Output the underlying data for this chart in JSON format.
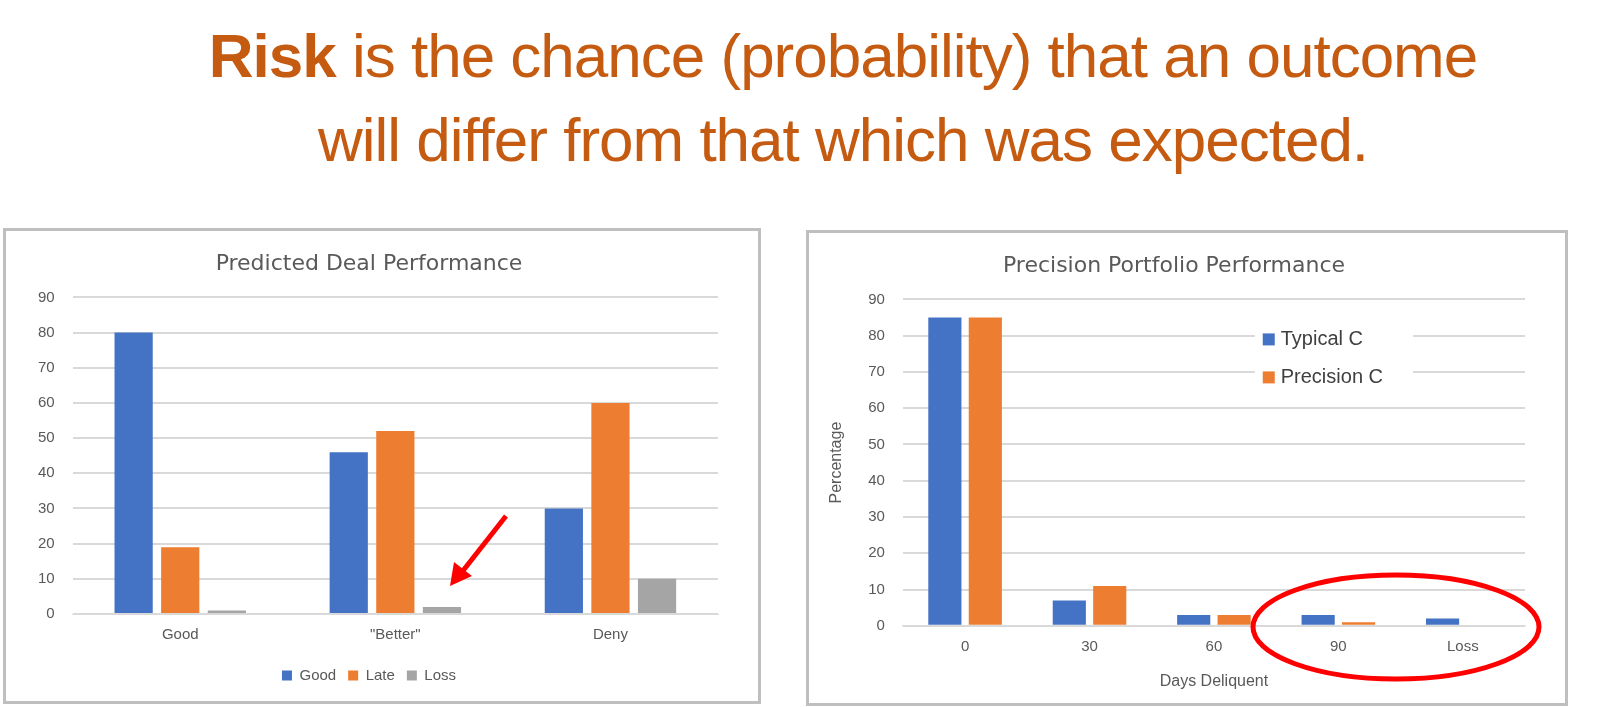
{
  "chart_data": [
    {
      "type": "other",
      "title": "Risk is the chance (probability) that an outcome will differ from that which was expected."
    },
    {
      "type": "bar",
      "title": "Predicted Deal Performance",
      "categories": [
        "Good",
        "\"Better\"",
        "Deny"
      ],
      "series": [
        {
          "name": "Good",
          "color": "#4472c4",
          "values": [
            80,
            46,
            30
          ]
        },
        {
          "name": "Late",
          "color": "#ed7d31",
          "values": [
            19,
            52,
            60
          ]
        },
        {
          "name": "Loss",
          "color": "#a5a5a5",
          "values": [
            1,
            2,
            10
          ]
        }
      ],
      "ylim": [
        0,
        90
      ],
      "yticks": [
        0,
        10,
        20,
        30,
        40,
        50,
        60,
        70,
        80,
        90
      ],
      "grid": "y",
      "legend": "bottom"
    },
    {
      "type": "bar",
      "title": "Precision Portfolio Performance",
      "xlabel": "Days Deliquent",
      "ylabel": "Percentage",
      "categories": [
        "0",
        "30",
        "60",
        "90",
        "Loss"
      ],
      "series": [
        {
          "name": "Typical C",
          "color": "#4472c4",
          "values": [
            85,
            7,
            3,
            3,
            2
          ]
        },
        {
          "name": "Precision C",
          "color": "#ed7d31",
          "values": [
            85,
            11,
            3,
            1,
            0
          ]
        }
      ],
      "ylim": [
        0,
        90
      ],
      "yticks": [
        0,
        10,
        20,
        30,
        40,
        50,
        60,
        70,
        80,
        90
      ],
      "grid": "y",
      "legend": "top right"
    }
  ]
}
